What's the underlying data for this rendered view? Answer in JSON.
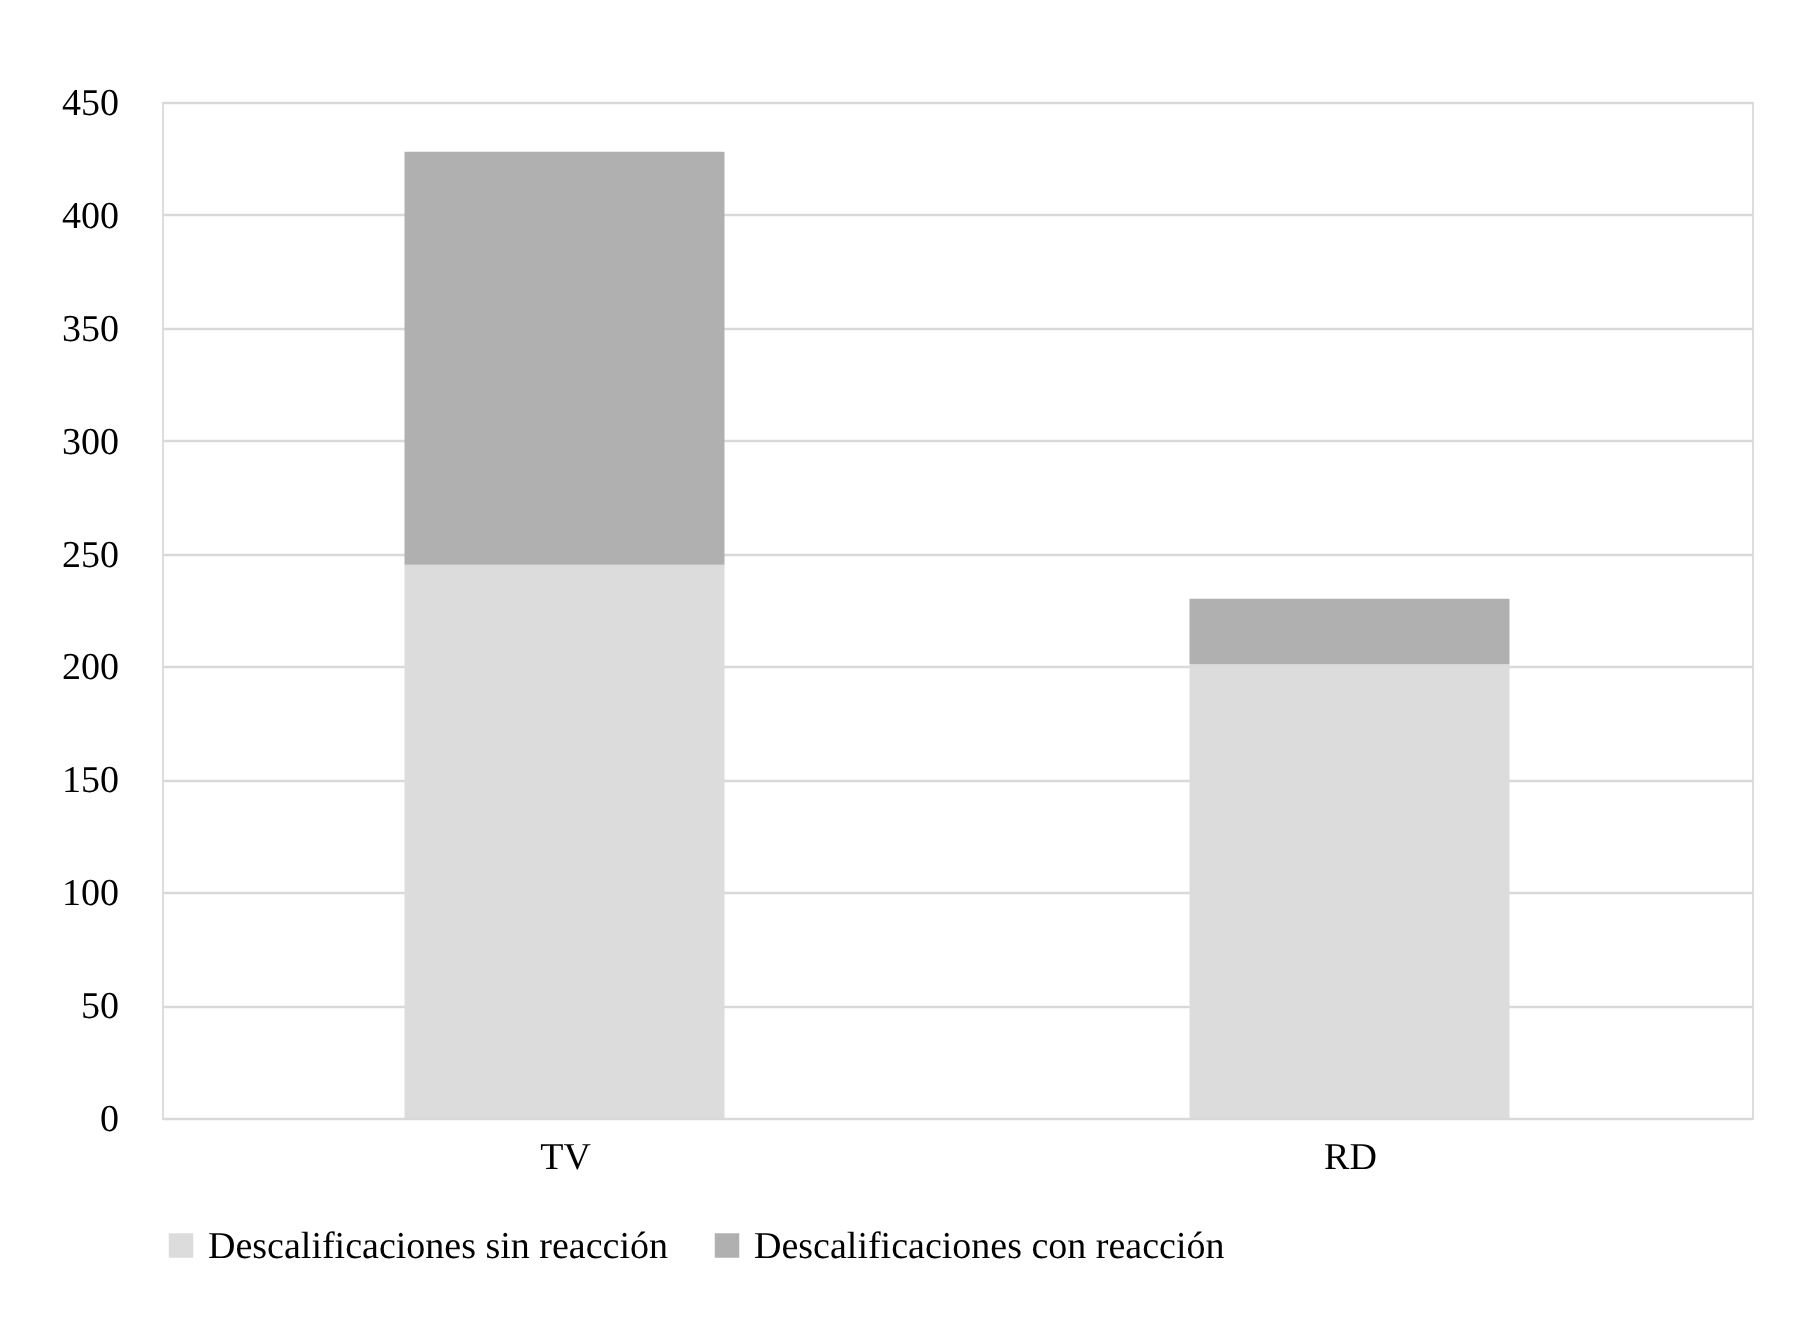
{
  "chart_data": {
    "type": "bar",
    "stacked": true,
    "categories": [
      "TV",
      "RD"
    ],
    "series": [
      {
        "name": "Descalificaciones sin reacción",
        "color": "#dcdcdc",
        "values": [
          245,
          201
        ]
      },
      {
        "name": "Descalificaciones con reacción",
        "color": "#b0b0b0",
        "values": [
          183,
          29
        ]
      }
    ],
    "ylim": [
      0,
      450
    ],
    "yticks": [
      0,
      50,
      100,
      150,
      200,
      250,
      300,
      350,
      400,
      450
    ],
    "grid": "y",
    "legend": "bottom"
  }
}
